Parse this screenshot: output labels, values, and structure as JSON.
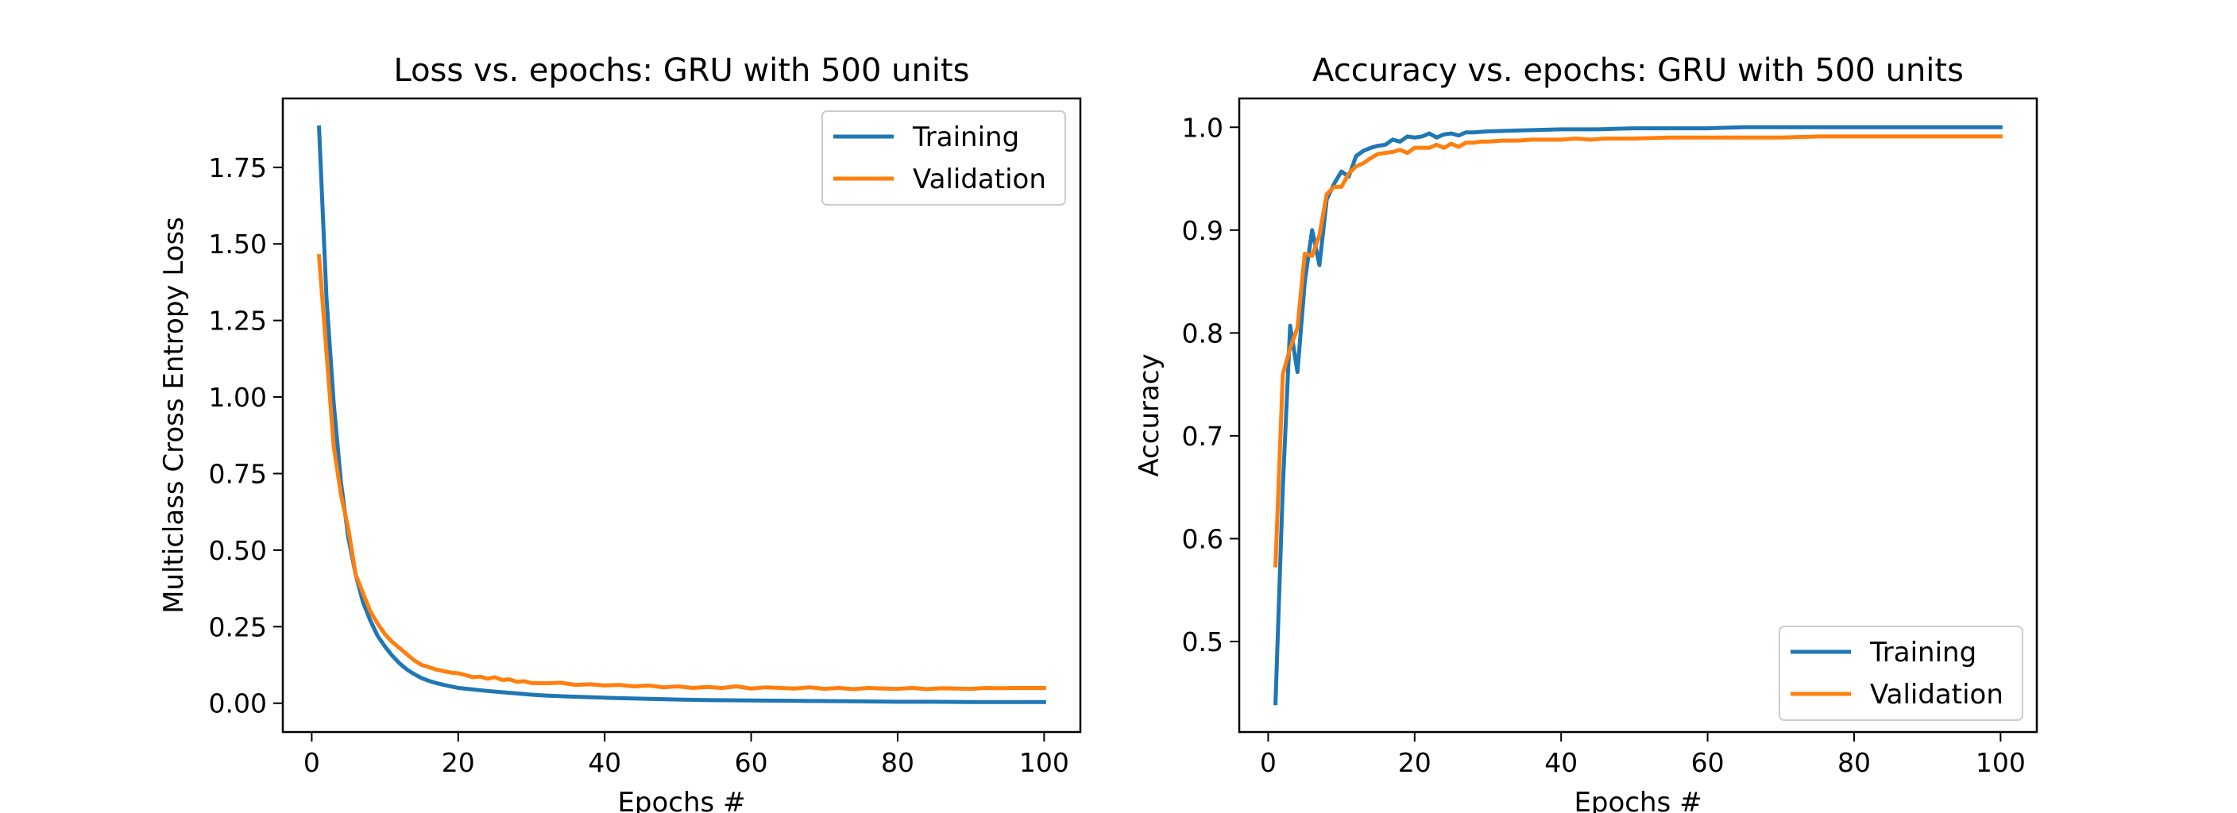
{
  "chart_data": [
    {
      "type": "line",
      "title": "Loss vs. epochs: GRU with 500 units",
      "xlabel": "Epochs #",
      "ylabel": "Multiclass Cross Entropy Loss",
      "xlim": [
        -3.95,
        104.95
      ],
      "ylim": [
        -0.094,
        1.975
      ],
      "xticks": [
        0,
        20,
        40,
        60,
        80,
        100
      ],
      "xtick_labels": [
        "0",
        "20",
        "40",
        "60",
        "80",
        "100"
      ],
      "yticks": [
        0,
        0.25,
        0.5,
        0.75,
        1.0,
        1.25,
        1.5,
        1.75
      ],
      "ytick_labels": [
        "0.00",
        "0.25",
        "0.50",
        "0.75",
        "1.00",
        "1.25",
        "1.50",
        "1.75"
      ],
      "legend_position": "upper right",
      "grid": false,
      "series": [
        {
          "name": "Training",
          "color": "#1f77b4",
          "x": [
            1,
            2,
            3,
            4,
            5,
            6,
            7,
            8,
            9,
            10,
            11,
            12,
            13,
            14,
            15,
            16,
            17,
            18,
            19,
            20,
            22,
            24,
            26,
            28,
            30,
            32,
            35,
            40,
            45,
            50,
            55,
            60,
            65,
            70,
            75,
            80,
            85,
            90,
            95,
            100
          ],
          "y": [
            1.88,
            1.33,
            0.98,
            0.72,
            0.54,
            0.42,
            0.33,
            0.27,
            0.22,
            0.185,
            0.155,
            0.13,
            0.11,
            0.095,
            0.082,
            0.073,
            0.066,
            0.06,
            0.055,
            0.05,
            0.045,
            0.04,
            0.036,
            0.032,
            0.028,
            0.025,
            0.022,
            0.018,
            0.015,
            0.012,
            0.01,
            0.009,
            0.008,
            0.007,
            0.006,
            0.005,
            0.005,
            0.004,
            0.004,
            0.004
          ]
        },
        {
          "name": "Validation",
          "color": "#ff7f0e",
          "x": [
            1,
            2,
            3,
            4,
            5,
            6,
            7,
            8,
            9,
            10,
            11,
            12,
            13,
            14,
            15,
            16,
            17,
            18,
            19,
            20,
            21,
            22,
            23,
            24,
            25,
            26,
            27,
            28,
            29,
            30,
            32,
            34,
            36,
            38,
            40,
            42,
            44,
            46,
            48,
            50,
            52,
            54,
            56,
            58,
            60,
            62,
            64,
            66,
            68,
            70,
            72,
            74,
            76,
            78,
            80,
            82,
            84,
            86,
            88,
            90,
            92,
            94,
            96,
            98,
            100
          ],
          "y": [
            1.46,
            1.15,
            0.84,
            0.68,
            0.57,
            0.42,
            0.36,
            0.3,
            0.26,
            0.225,
            0.2,
            0.18,
            0.16,
            0.14,
            0.125,
            0.118,
            0.11,
            0.105,
            0.1,
            0.098,
            0.092,
            0.085,
            0.087,
            0.08,
            0.085,
            0.076,
            0.078,
            0.07,
            0.072,
            0.066,
            0.065,
            0.067,
            0.06,
            0.062,
            0.058,
            0.06,
            0.055,
            0.058,
            0.052,
            0.055,
            0.05,
            0.053,
            0.05,
            0.055,
            0.048,
            0.052,
            0.05,
            0.048,
            0.052,
            0.047,
            0.05,
            0.046,
            0.05,
            0.048,
            0.047,
            0.05,
            0.046,
            0.049,
            0.048,
            0.047,
            0.05,
            0.049,
            0.05,
            0.05,
            0.05
          ]
        }
      ]
    },
    {
      "type": "line",
      "title": "Accuracy vs. epochs: GRU with 500 units",
      "xlabel": "Epochs #",
      "ylabel": "Accuracy",
      "xlim": [
        -3.95,
        104.95
      ],
      "ylim": [
        0.412,
        1.028
      ],
      "xticks": [
        0,
        20,
        40,
        60,
        80,
        100
      ],
      "xtick_labels": [
        "0",
        "20",
        "40",
        "60",
        "80",
        "100"
      ],
      "yticks": [
        0.5,
        0.6,
        0.7,
        0.8,
        0.9,
        1.0
      ],
      "ytick_labels": [
        "0.5",
        "0.6",
        "0.7",
        "0.8",
        "0.9",
        "1.0"
      ],
      "legend_position": "lower right",
      "grid": false,
      "series": [
        {
          "name": "Training",
          "color": "#1f77b4",
          "x": [
            1,
            2,
            3,
            4,
            5,
            6,
            7,
            8,
            9,
            10,
            11,
            12,
            13,
            14,
            15,
            16,
            17,
            18,
            19,
            20,
            21,
            22,
            23,
            24,
            25,
            26,
            27,
            28,
            30,
            35,
            40,
            45,
            50,
            55,
            60,
            65,
            70,
            75,
            80,
            85,
            90,
            95,
            100
          ],
          "y": [
            0.44,
            0.65,
            0.807,
            0.762,
            0.85,
            0.9,
            0.866,
            0.93,
            0.945,
            0.957,
            0.952,
            0.972,
            0.977,
            0.98,
            0.982,
            0.983,
            0.988,
            0.986,
            0.991,
            0.99,
            0.991,
            0.994,
            0.99,
            0.993,
            0.994,
            0.992,
            0.995,
            0.995,
            0.996,
            0.997,
            0.998,
            0.998,
            0.999,
            0.999,
            0.999,
            1.0,
            1.0,
            1.0,
            1.0,
            1.0,
            1.0,
            1.0,
            1.0
          ]
        },
        {
          "name": "Validation",
          "color": "#ff7f0e",
          "x": [
            1,
            2,
            3,
            4,
            5,
            6,
            7,
            8,
            9,
            10,
            11,
            12,
            13,
            14,
            15,
            16,
            17,
            18,
            19,
            20,
            21,
            22,
            23,
            24,
            25,
            26,
            27,
            28,
            29,
            30,
            32,
            34,
            36,
            38,
            40,
            42,
            44,
            46,
            48,
            50,
            55,
            60,
            65,
            70,
            75,
            80,
            85,
            90,
            95,
            100
          ],
          "y": [
            0.574,
            0.76,
            0.785,
            0.805,
            0.877,
            0.875,
            0.895,
            0.935,
            0.942,
            0.942,
            0.955,
            0.962,
            0.965,
            0.97,
            0.974,
            0.975,
            0.976,
            0.978,
            0.975,
            0.98,
            0.98,
            0.98,
            0.983,
            0.98,
            0.984,
            0.981,
            0.985,
            0.985,
            0.986,
            0.986,
            0.987,
            0.987,
            0.988,
            0.988,
            0.988,
            0.989,
            0.988,
            0.989,
            0.989,
            0.989,
            0.99,
            0.99,
            0.99,
            0.99,
            0.991,
            0.991,
            0.991,
            0.991,
            0.991,
            0.991
          ]
        }
      ]
    }
  ]
}
